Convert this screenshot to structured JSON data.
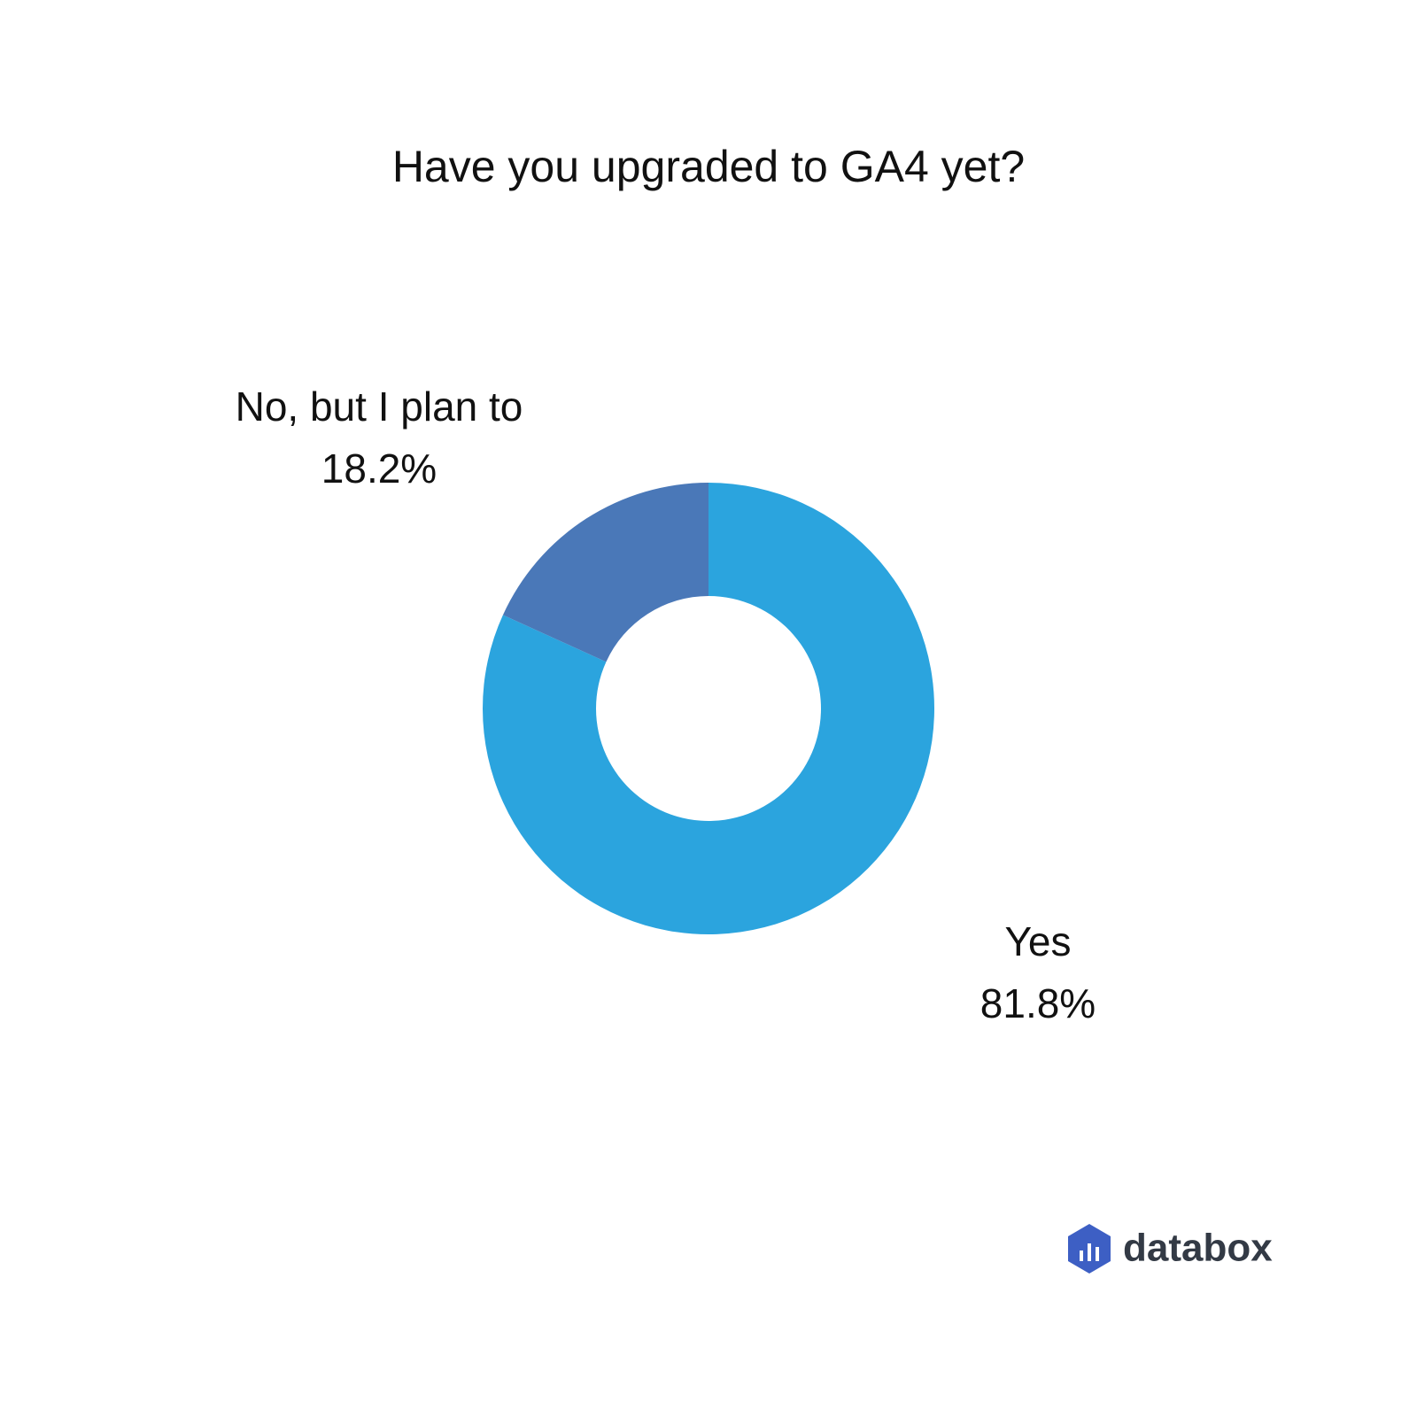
{
  "chart_data": {
    "type": "donut",
    "title": "Have you upgraded to GA4 yet?",
    "categories": [
      "Yes",
      "No, but I plan to"
    ],
    "values": [
      81.8,
      18.2
    ],
    "value_labels": [
      "81.8%",
      "18.2%"
    ],
    "colors": [
      "#2ba4de",
      "#4a78b8"
    ]
  },
  "logo": "databox"
}
